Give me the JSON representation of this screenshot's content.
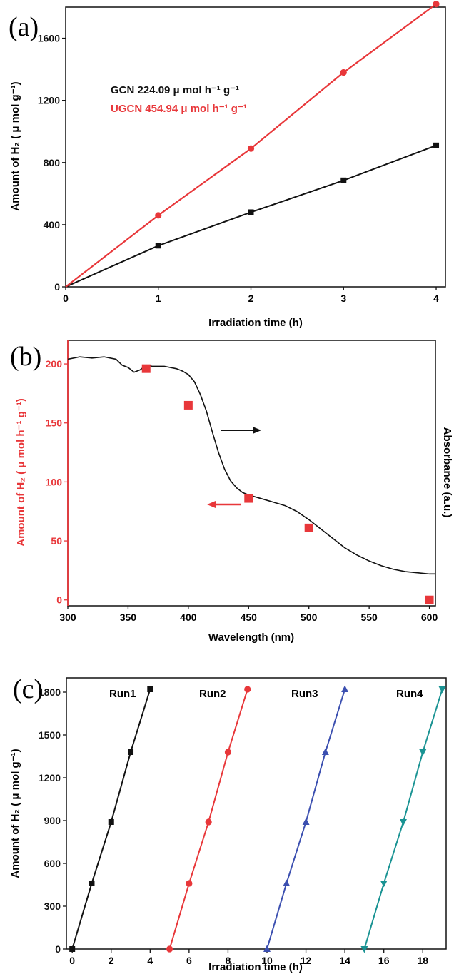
{
  "chart_data": [
    {
      "panel_label": "(a)",
      "type": "line",
      "xlabel": "Irradiation time (h)",
      "ylabel": "Amount of H₂ ( μ mol g⁻¹)",
      "xlim": [
        0,
        4.1
      ],
      "ylim": [
        0,
        1800
      ],
      "xticks": [
        0,
        1,
        2,
        3,
        4
      ],
      "yticks": [
        0,
        400,
        800,
        1200,
        1600
      ],
      "grid": false,
      "annotations": [
        {
          "text": "GCN   224.09  μ mol h⁻¹ g⁻¹",
          "color": "#111111"
        },
        {
          "text": "UGCN 454.94  μ mol h⁻¹ g⁻¹",
          "color": "#e8373a"
        }
      ],
      "series": [
        {
          "x": [
            0,
            1,
            2,
            3,
            4
          ],
          "values": [
            0,
            265,
            480,
            685,
            910
          ],
          "color": "#111111",
          "marker": "square"
        },
        {
          "x": [
            0,
            1,
            2,
            3,
            4
          ],
          "values": [
            0,
            460,
            890,
            1380,
            1820
          ],
          "color": "#e8373a",
          "marker": "circle"
        }
      ]
    },
    {
      "panel_label": "(b)",
      "type": "scatter",
      "xlabel": "Wavelength (nm)",
      "ylabel": "Amount of H₂ ( μ mol h⁻¹ g⁻¹)",
      "y2label": "Absorbance (a.u.)",
      "xlim": [
        300,
        605
      ],
      "ylim": [
        -5,
        220
      ],
      "xticks": [
        300,
        350,
        400,
        450,
        500,
        550,
        600
      ],
      "yticks": [
        0,
        50,
        100,
        150,
        200
      ],
      "grid": false,
      "series": [
        {
          "x": [
            365,
            400,
            450,
            500,
            600
          ],
          "values": [
            196,
            165,
            86,
            61,
            0
          ],
          "color": "#e8373a",
          "marker": "square"
        },
        {
          "x": [
            300,
            310,
            320,
            330,
            340,
            345,
            350,
            355,
            360,
            365,
            370,
            380,
            390,
            395,
            400,
            405,
            410,
            415,
            420,
            425,
            430,
            435,
            440,
            445,
            450,
            460,
            470,
            480,
            490,
            500,
            510,
            520,
            530,
            540,
            550,
            560,
            570,
            580,
            590,
            600,
            605
          ],
          "values": [
            204,
            206,
            205,
            206,
            204,
            199,
            197,
            193,
            195,
            199,
            198,
            198,
            196,
            194,
            191,
            185,
            174,
            160,
            142,
            125,
            111,
            101,
            95,
            91,
            89,
            86,
            83,
            80,
            75,
            68,
            60,
            52,
            44,
            38,
            33,
            29,
            26,
            24,
            23,
            22,
            22
          ],
          "color": "#111111",
          "marker": "none",
          "axis": "right"
        }
      ]
    },
    {
      "panel_label": "(c)",
      "type": "line",
      "xlabel": "Irradiation time (h)",
      "ylabel": "Amount of H₂ ( μ mol g⁻¹)",
      "xlim": [
        -0.3,
        19.2
      ],
      "ylim": [
        0,
        1900
      ],
      "xticks": [
        0,
        2,
        4,
        6,
        8,
        10,
        12,
        14,
        16,
        18
      ],
      "yticks": [
        0,
        300,
        600,
        900,
        1200,
        1500,
        1800
      ],
      "grid": false,
      "series": [
        {
          "name": "Run1",
          "x": [
            0,
            1,
            2,
            3,
            4
          ],
          "values": [
            0,
            460,
            890,
            1380,
            1820
          ],
          "color": "#111111",
          "marker": "square"
        },
        {
          "name": "Run2",
          "x": [
            5,
            6,
            7,
            8,
            9
          ],
          "values": [
            0,
            460,
            890,
            1380,
            1820
          ],
          "color": "#e8373a",
          "marker": "circle"
        },
        {
          "name": "Run3",
          "x": [
            10,
            11,
            12,
            13,
            14
          ],
          "values": [
            0,
            460,
            890,
            1380,
            1820
          ],
          "color": "#3b4fb0",
          "marker": "triangle-up"
        },
        {
          "name": "Run4",
          "x": [
            15,
            16,
            17,
            18,
            19
          ],
          "values": [
            0,
            460,
            890,
            1380,
            1820
          ],
          "color": "#1a9393",
          "marker": "triangle-down"
        }
      ]
    }
  ]
}
